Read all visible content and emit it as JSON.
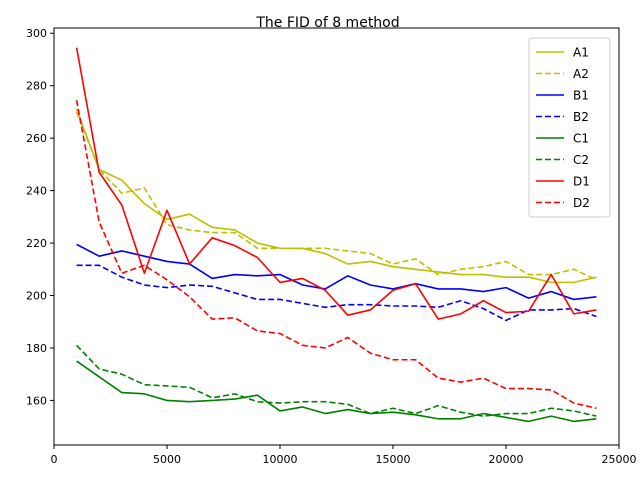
{
  "chart_data": {
    "type": "line",
    "title": "The FID of 8 method",
    "xlabel": "",
    "ylabel": "",
    "xlim": [
      0,
      25000
    ],
    "ylim": [
      143,
      302
    ],
    "xticks": [
      0,
      5000,
      10000,
      15000,
      20000,
      25000
    ],
    "yticks": [
      160,
      180,
      200,
      220,
      240,
      260,
      280,
      300
    ],
    "grid": false,
    "legend_position": "top-right",
    "x": [
      1000,
      2000,
      3000,
      4000,
      5000,
      6000,
      7000,
      8000,
      9000,
      10000,
      11000,
      12000,
      13000,
      14000,
      15000,
      16000,
      17000,
      18000,
      19000,
      20000,
      21000,
      22000,
      23000,
      24000
    ],
    "series": [
      {
        "name": "A1",
        "color": "#bfbf00",
        "dash": "solid",
        "values": [
          271,
          248,
          244,
          235,
          229,
          231,
          226,
          225,
          220,
          218,
          218,
          216,
          212,
          213,
          211,
          210,
          209,
          208,
          208,
          207,
          207,
          205,
          205,
          207
        ]
      },
      {
        "name": "A2",
        "color": "#bfbf00",
        "dash": "dashed",
        "values": [
          270,
          248,
          239,
          241,
          227,
          225,
          224,
          224,
          218,
          218,
          218,
          218,
          217,
          216,
          212,
          214,
          208,
          210,
          211,
          213,
          208,
          208,
          210,
          206
        ]
      },
      {
        "name": "B1",
        "color": "#0000ff",
        "dash": "solid",
        "values": [
          219.5,
          215,
          217,
          215,
          213,
          212,
          206.5,
          208,
          207.5,
          208,
          204,
          202.5,
          207.5,
          204,
          202.5,
          204.5,
          202.5,
          202.5,
          201.5,
          203,
          199,
          201.5,
          198.5,
          199.5
        ]
      },
      {
        "name": "B2",
        "color": "#0000ff",
        "dash": "dashed",
        "values": [
          211.5,
          211.5,
          207,
          204,
          203,
          204,
          203.5,
          201,
          198.5,
          198.5,
          197,
          195.5,
          196.5,
          196.5,
          196,
          196,
          195.5,
          198,
          195,
          190.5,
          194.5,
          194.5,
          195,
          192
        ]
      },
      {
        "name": "C1",
        "color": "#008000",
        "dash": "solid",
        "values": [
          175,
          169,
          163,
          162.5,
          160,
          159.5,
          160,
          160.5,
          162,
          156,
          157.5,
          155,
          156.5,
          155,
          155.5,
          154.5,
          153,
          153,
          155,
          153.5,
          152,
          154,
          152,
          153
        ]
      },
      {
        "name": "C2",
        "color": "#008000",
        "dash": "dashed",
        "values": [
          181,
          172,
          170,
          166,
          165.5,
          165,
          161,
          162.5,
          159.5,
          159,
          159.5,
          159.5,
          158.5,
          155,
          157,
          155,
          158,
          155.5,
          154,
          155,
          155,
          157,
          156,
          154
        ]
      },
      {
        "name": "D1",
        "color": "#ff0000",
        "dash": "solid",
        "values": [
          294.5,
          247,
          234.5,
          208.5,
          232.5,
          212,
          222,
          219,
          214.5,
          205,
          206.5,
          202,
          192.5,
          194.5,
          202,
          204.5,
          191,
          193,
          198,
          193.5,
          194,
          208,
          193,
          194.5
        ]
      },
      {
        "name": "D2",
        "color": "#ff0000",
        "dash": "dashed",
        "values": [
          274.5,
          228,
          208.5,
          211.5,
          206,
          199.5,
          191,
          191.5,
          186.5,
          185.5,
          181,
          180,
          184,
          178,
          175.5,
          175.5,
          168.5,
          167,
          168.5,
          164.5,
          164.5,
          164,
          159,
          157
        ]
      }
    ]
  }
}
